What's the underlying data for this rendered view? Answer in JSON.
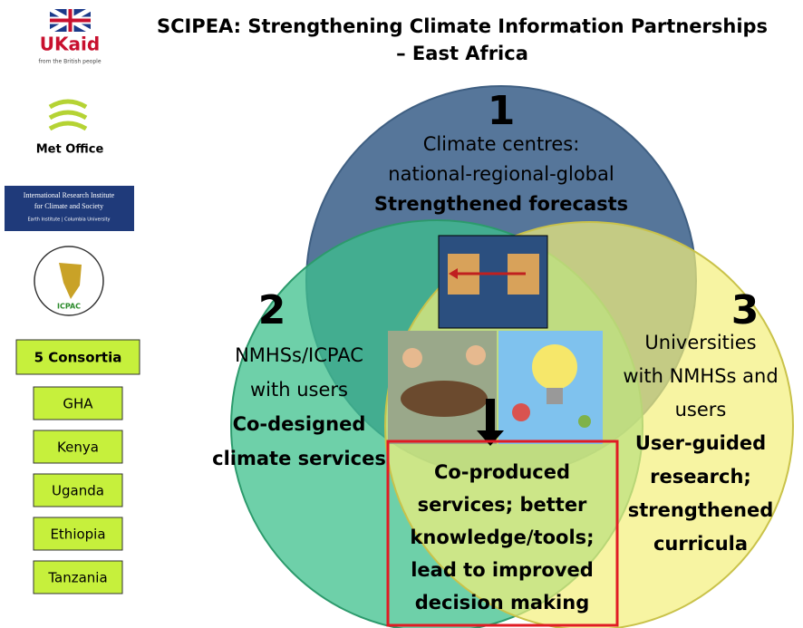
{
  "header": {
    "title": [
      "SCIPEA: Strengthening Climate Information Partnerships",
      "– East Africa"
    ]
  },
  "logos": {
    "ukaid": "UKaid",
    "ukaid_tagline": "from the British people",
    "met_office": "Met Office",
    "iri": [
      "International Research Institute",
      "for Climate and Society",
      "Earth Institute | Columbia University"
    ],
    "icpac": "ICPAC"
  },
  "consortia": {
    "heading": "5 Consortia",
    "items": [
      "GHA",
      "Kenya",
      "Uganda",
      "Ethiopia",
      "Tanzania"
    ]
  },
  "circles": [
    {
      "number": "1",
      "lines": [
        "Climate centres:",
        "national-regional-global"
      ],
      "bold_lines": [
        "Strengthened forecasts"
      ]
    },
    {
      "number": "2",
      "lines": [
        "NMHSs/ICPAC",
        "with users"
      ],
      "bold_lines": [
        "Co-designed",
        "climate services"
      ]
    },
    {
      "number": "3",
      "lines": [
        "Universities",
        "with NMHSs and",
        "users"
      ],
      "bold_lines": [
        "User-guided",
        "research;",
        "strengthened",
        "curricula"
      ]
    }
  ],
  "center_box": {
    "lines": [
      "Co-produced",
      "services; better",
      "knowledge/tools;",
      "lead to improved",
      "decision making"
    ]
  }
}
